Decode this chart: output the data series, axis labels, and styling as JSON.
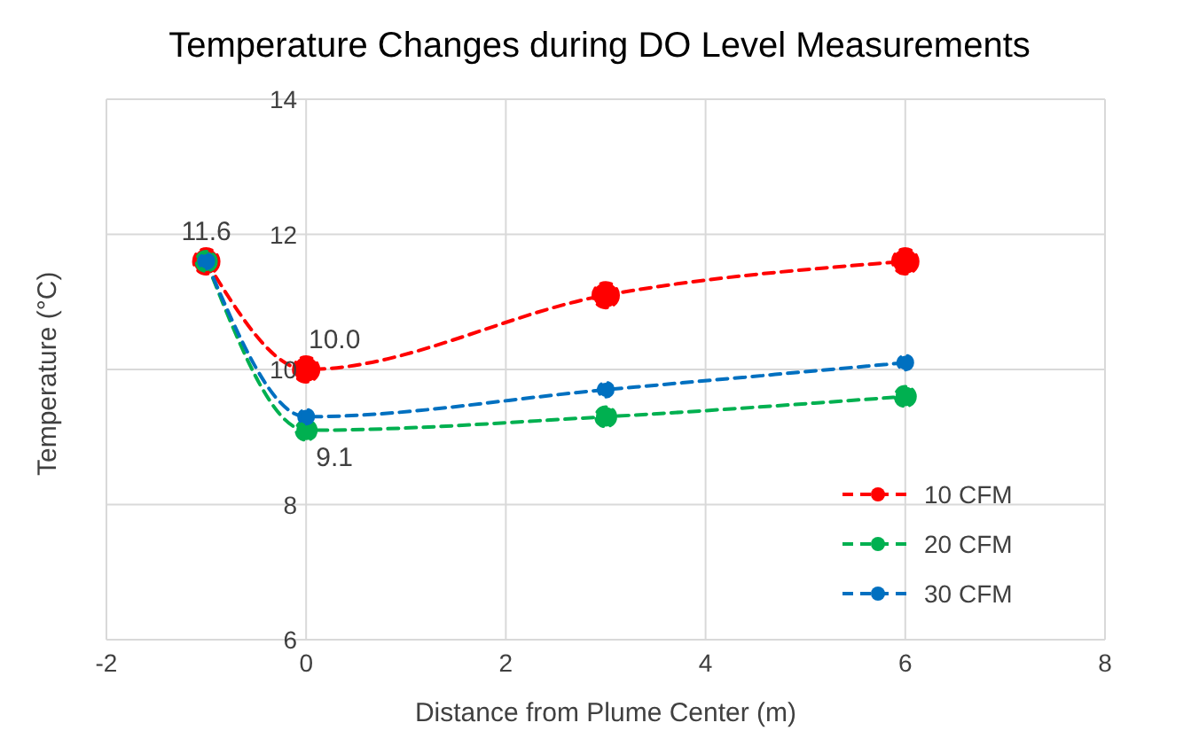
{
  "chart_data": {
    "type": "line",
    "title": "Temperature Changes during DO Level Measurements",
    "xlabel": "Distance from Plume Center (m)",
    "ylabel": "Temperature (°C)",
    "x": [
      -1,
      0,
      3,
      6
    ],
    "series": [
      {
        "name": "10 CFM",
        "color": "#ff0000",
        "values": [
          11.6,
          10.0,
          11.1,
          11.6
        ],
        "value_labels": [
          null,
          "10.0",
          null,
          null
        ]
      },
      {
        "name": "20 CFM",
        "color": "#00b050",
        "values": [
          11.6,
          9.1,
          9.3,
          9.6
        ],
        "value_labels": [
          null,
          "9.1",
          null,
          null
        ]
      },
      {
        "name": "30 CFM",
        "color": "#0070c0",
        "values": [
          11.6,
          9.3,
          9.7,
          10.1
        ],
        "value_labels": [
          "11.6",
          null,
          null,
          null
        ]
      }
    ],
    "xlim": [
      -2,
      8
    ],
    "xticks": [
      -2,
      0,
      2,
      4,
      6,
      8
    ],
    "ylim": [
      6,
      14
    ],
    "yticks": [
      6,
      8,
      10,
      12,
      14
    ],
    "grid": true,
    "legend": "bottom right",
    "marker": "circle",
    "line_style": "dashed"
  }
}
